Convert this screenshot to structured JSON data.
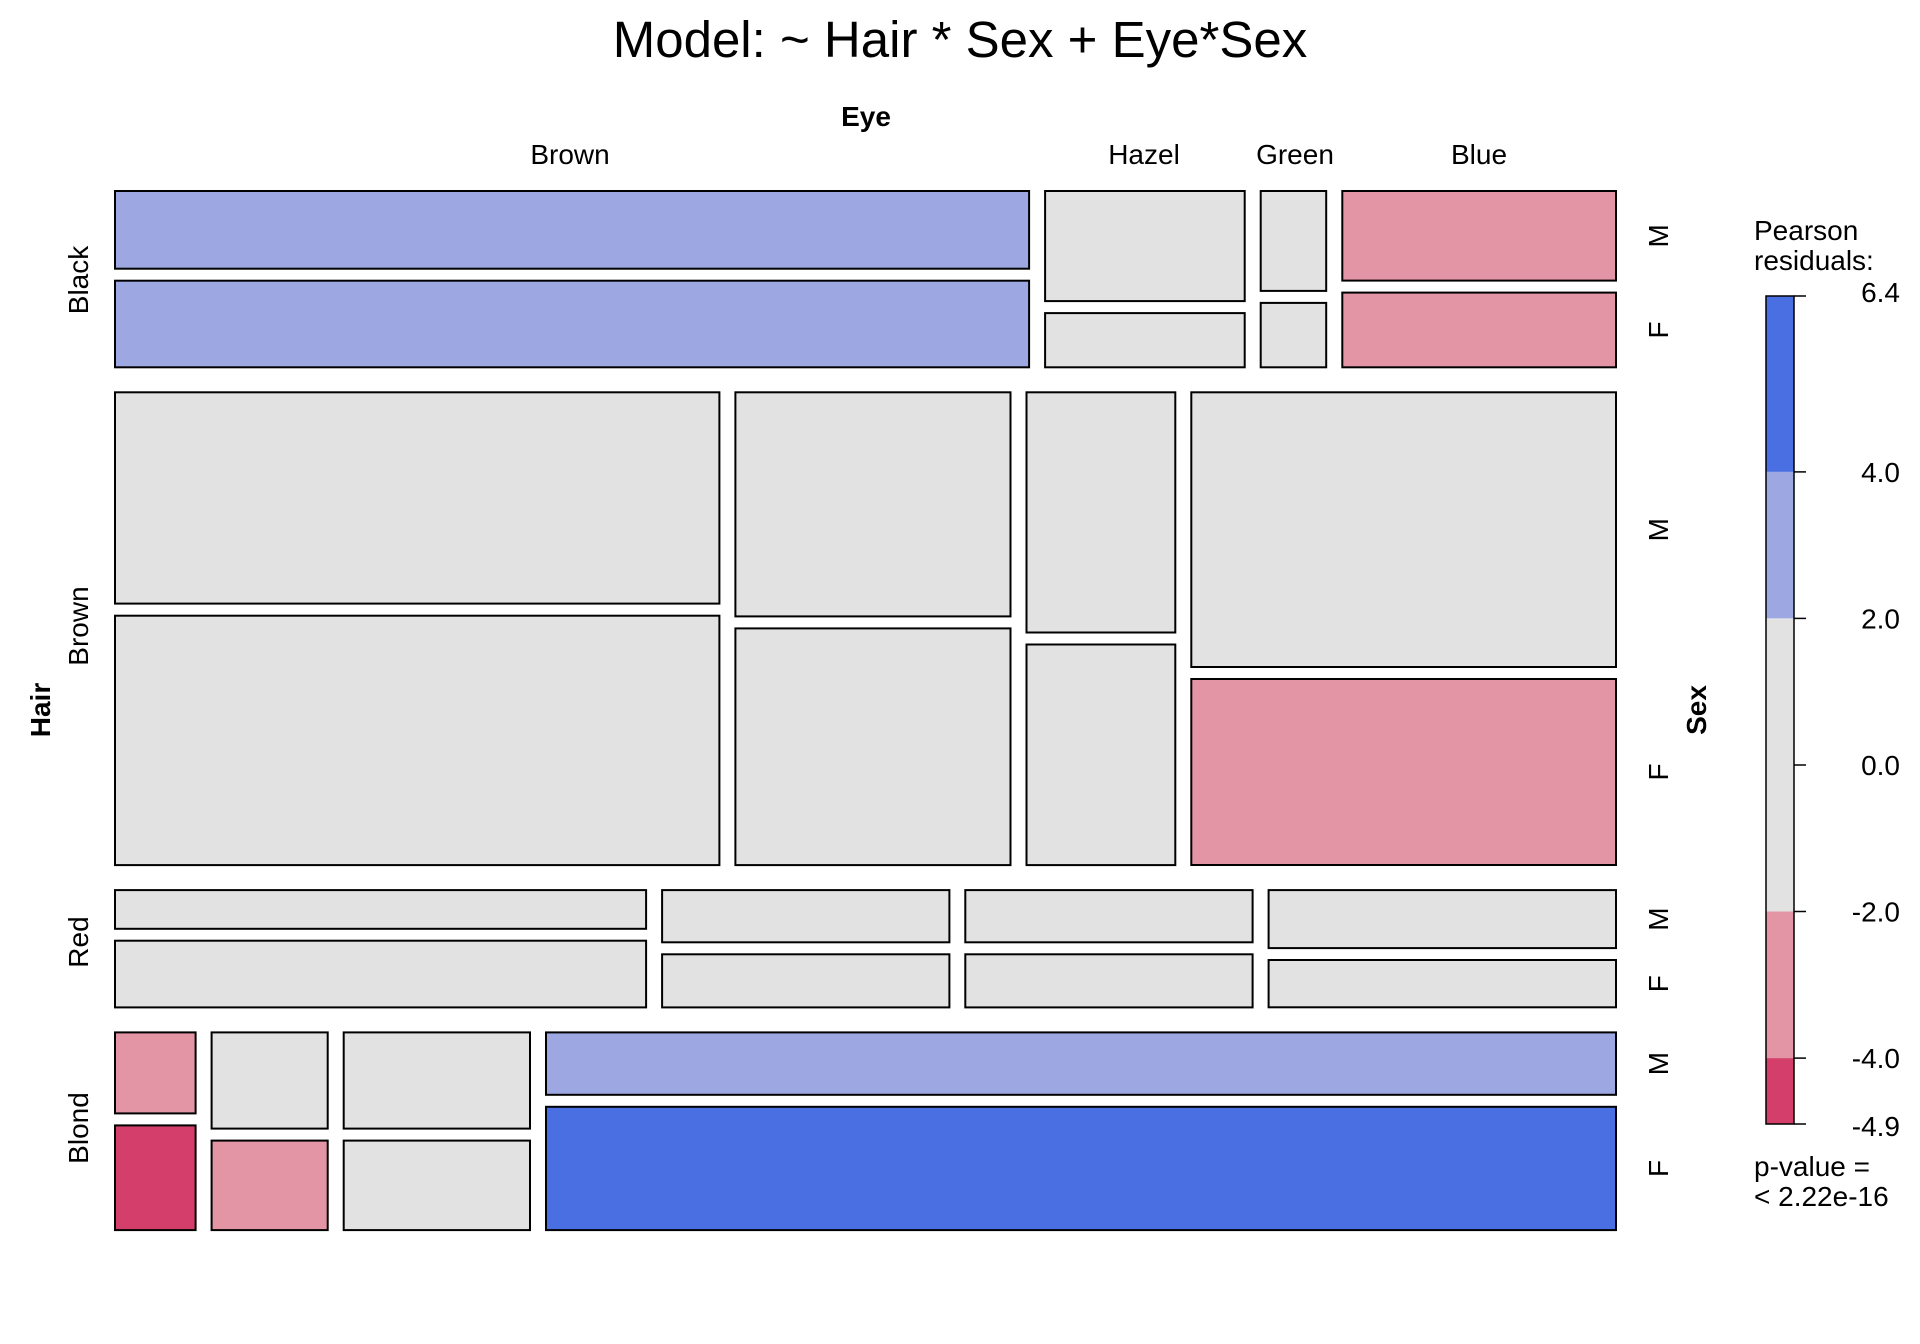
{
  "chart_data": {
    "type": "mosaic",
    "title": "Model: ~ Hair * Sex + Eye*Sex",
    "row_variable": "Hair",
    "column_variable": "Eye",
    "sex_variable": "Sex",
    "hair_levels": [
      "Black",
      "Brown",
      "Red",
      "Blond"
    ],
    "eye_levels": [
      "Brown",
      "Hazel",
      "Green",
      "Blue"
    ],
    "sex_levels": [
      "M",
      "F"
    ],
    "colors": {
      "strong_positive": "#4A6FE3",
      "positive": "#9DA8E2",
      "neutral": "#E2E2E2",
      "negative": "#E495A5",
      "strong_negative": "#D33F6A"
    },
    "legend": {
      "title_line1": "Pearson",
      "title_line2": "residuals:",
      "range": [
        -4.9,
        6.4
      ],
      "ticks": [
        {
          "value": 6.4,
          "label": "6.4"
        },
        {
          "value": 4.0,
          "label": "4.0"
        },
        {
          "value": 2.0,
          "label": "2.0"
        },
        {
          "value": 0.0,
          "label": "0.0"
        },
        {
          "value": -2.0,
          "label": "-2.0"
        },
        {
          "value": -4.0,
          "label": "-4.0"
        },
        {
          "value": -4.9,
          "label": "-4.9"
        }
      ],
      "bands": [
        {
          "from": 4.0,
          "to": 6.4,
          "color": "#4A6FE3"
        },
        {
          "from": 2.0,
          "to": 4.0,
          "color": "#9DA8E2"
        },
        {
          "from": -2.0,
          "to": 2.0,
          "color": "#E2E2E2"
        },
        {
          "from": -4.0,
          "to": -2.0,
          "color": "#E495A5"
        },
        {
          "from": -4.9,
          "to": -4.0,
          "color": "#D33F6A"
        }
      ],
      "pvalue_line1": "p-value =",
      "pvalue_line2": "< 2.22e-16"
    },
    "hair_rows": [
      {
        "hair": "Black",
        "eye_order": [
          "Brown",
          "Hazel",
          "Green",
          "Blue"
        ],
        "eye_fractions": [
          0.6291,
          0.1374,
          0.0451,
          0.1884
        ],
        "cells": [
          {
            "eye": "Brown",
            "m_fraction": 0.4729,
            "m_residual": "positive",
            "f_residual": "positive"
          },
          {
            "eye": "Hazel",
            "m_fraction": 0.6703,
            "m_residual": "neutral",
            "f_residual": "neutral"
          },
          {
            "eye": "Green",
            "m_fraction": 0.6078,
            "m_residual": "neutral",
            "f_residual": "neutral"
          },
          {
            "eye": "Blue",
            "m_fraction": 0.5455,
            "m_residual": "negative",
            "f_residual": "negative"
          }
        ]
      },
      {
        "hair": "Brown",
        "eye_order": [
          "Brown",
          "Hazel",
          "Green",
          "Blue"
        ],
        "eye_fractions": [
          0.416,
          0.1893,
          0.1024,
          0.2923
        ],
        "cells": [
          {
            "eye": "Brown",
            "m_fraction": 0.4587,
            "m_residual": "neutral",
            "f_residual": "neutral"
          },
          {
            "eye": "Hazel",
            "m_fraction": 0.4863,
            "m_residual": "neutral",
            "f_residual": "neutral"
          },
          {
            "eye": "Green",
            "m_fraction": 0.5213,
            "m_residual": "neutral",
            "f_residual": "neutral"
          },
          {
            "eye": "Blue",
            "m_fraction": 0.5962,
            "m_residual": "neutral",
            "f_residual": "negative"
          }
        ]
      },
      {
        "hair": "Red",
        "eye_order": [
          "Brown",
          "Hazel",
          "Green",
          "Blue"
        ],
        "eye_fractions": [
          0.3655,
          0.1977,
          0.1977,
          0.2391
        ],
        "cells": [
          {
            "eye": "Brown",
            "m_fraction": 0.367,
            "m_residual": "neutral",
            "f_residual": "neutral"
          },
          {
            "eye": "Hazel",
            "m_fraction": 0.496,
            "m_residual": "neutral",
            "f_residual": "neutral"
          },
          {
            "eye": "Green",
            "m_fraction": 0.496,
            "m_residual": "neutral",
            "f_residual": "neutral"
          },
          {
            "eye": "Blue",
            "m_fraction": 0.5505,
            "m_residual": "neutral",
            "f_residual": "neutral"
          }
        ]
      },
      {
        "hair": "Blond",
        "eye_order": [
          "Brown",
          "Green",
          "Hazel",
          "Blue"
        ],
        "eye_fractions": [
          0.0555,
          0.0799,
          0.1282,
          0.7364
        ],
        "cells": [
          {
            "eye": "Brown",
            "m_fraction": 0.4363,
            "m_residual": "negative",
            "f_residual": "strong_negative"
          },
          {
            "eye": "Green",
            "m_fraction": 0.5181,
            "m_residual": "neutral",
            "f_residual": "negative"
          },
          {
            "eye": "Hazel",
            "m_fraction": 0.5181,
            "m_residual": "neutral",
            "f_residual": "neutral"
          },
          {
            "eye": "Blue",
            "m_fraction": 0.3361,
            "m_residual": "positive",
            "f_residual": "strong_positive"
          }
        ]
      }
    ],
    "hair_fractions": [
      0.1829,
      0.4904,
      0.1217,
      0.2051
    ]
  }
}
